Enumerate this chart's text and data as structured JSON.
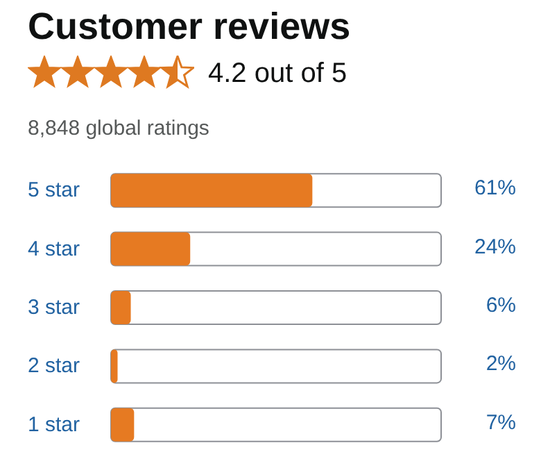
{
  "chart_data": {
    "type": "bar",
    "orientation": "horizontal",
    "title": "Customer reviews",
    "subtitle": "4.2 out of 5",
    "annotations": [
      "8,848 global ratings"
    ],
    "categories": [
      "5 star",
      "4 star",
      "3 star",
      "2 star",
      "1 star"
    ],
    "values": [
      61,
      24,
      6,
      2,
      7
    ],
    "color": "#e67a22",
    "value_labels": [
      "61%",
      "24%",
      "6%",
      "2%",
      "7%"
    ],
    "xlim": [
      0,
      100
    ],
    "tick_labels": "y"
  }
}
